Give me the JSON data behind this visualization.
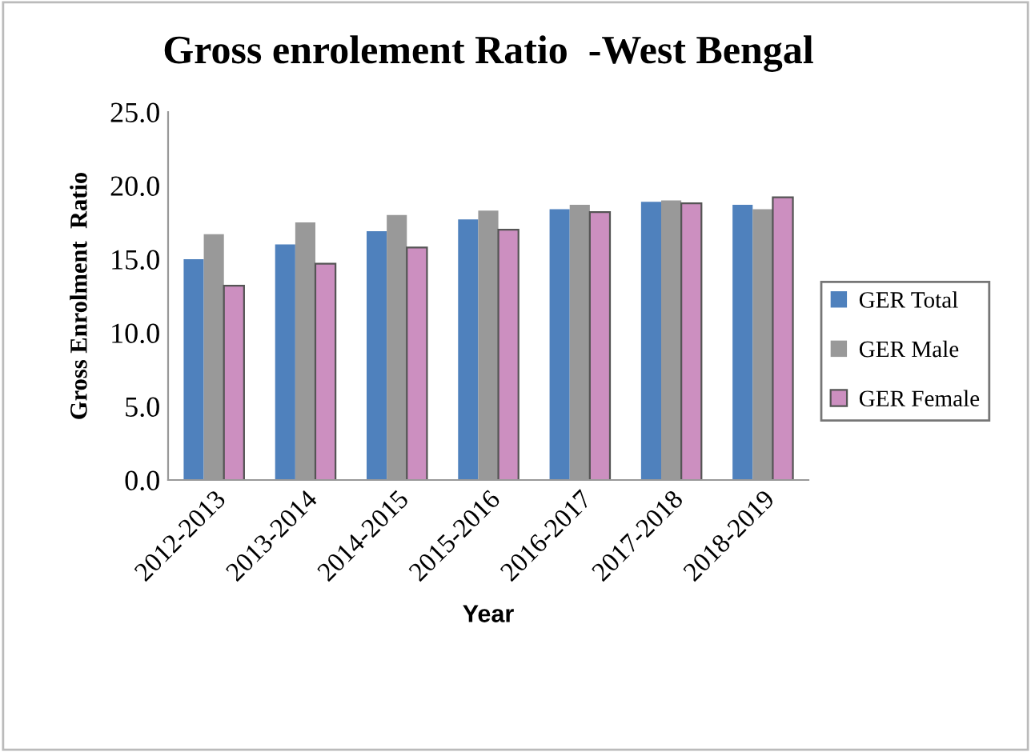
{
  "chart_data": {
    "type": "bar",
    "title": "Gross enrolement Ratio  -West Bengal",
    "xlabel": "Year",
    "ylabel": "Gross Enrolment  Ratio",
    "categories": [
      "2012-2013",
      "2013-2014",
      "2014-2015",
      "2015-2016",
      "2016-2017",
      "2017-2018",
      "2018-2019"
    ],
    "series": [
      {
        "name": "GER Total",
        "color": "#4f81bd",
        "values": [
          15.0,
          16.0,
          16.9,
          17.7,
          18.4,
          18.9,
          18.7
        ]
      },
      {
        "name": "GER Male",
        "color": "#999999",
        "values": [
          16.7,
          17.5,
          18.0,
          18.3,
          18.7,
          19.0,
          18.4
        ]
      },
      {
        "name": "GER Female",
        "color": "#cc8fc0",
        "values": [
          13.2,
          14.7,
          15.8,
          17.0,
          18.2,
          18.8,
          19.2
        ]
      }
    ],
    "ylim": [
      0,
      25
    ],
    "yticks": [
      {
        "value": 0,
        "label": "0.0"
      },
      {
        "value": 5,
        "label": "5.0"
      },
      {
        "value": 10,
        "label": "10.0"
      },
      {
        "value": 15,
        "label": "15.0"
      },
      {
        "value": 20,
        "label": "20.0"
      },
      {
        "value": 25,
        "label": "25.0"
      }
    ],
    "grid": false,
    "legend": "right"
  }
}
